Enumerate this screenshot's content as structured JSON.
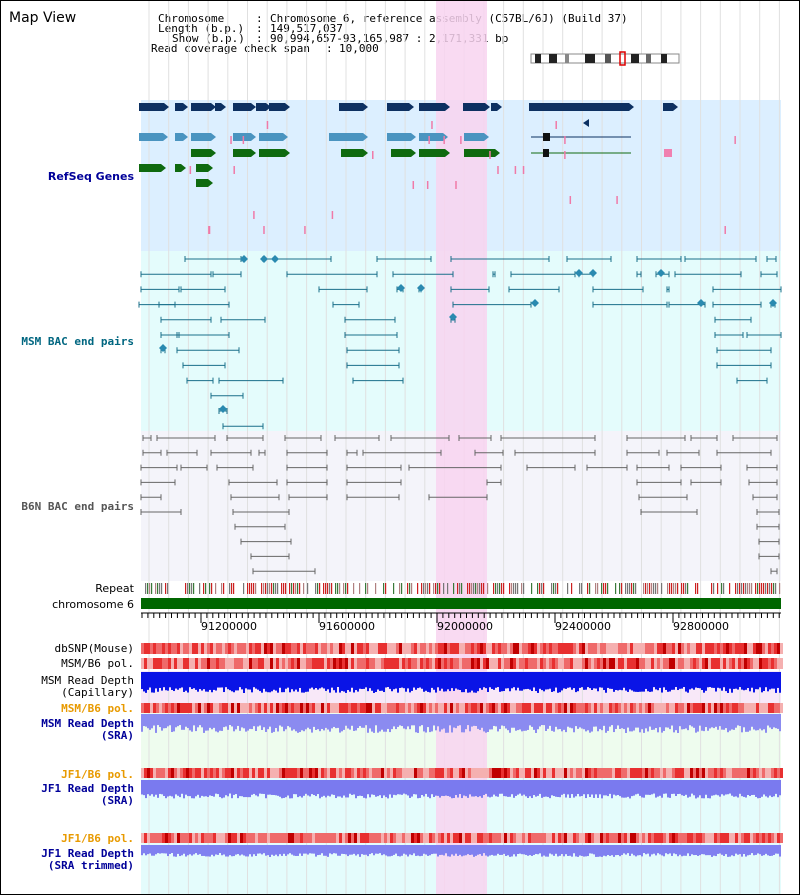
{
  "view_title": "Map View",
  "header": {
    "chromosome_label": "Chromosome",
    "chromosome_value": "Chromosome 6, reference assembly (C57BL/6J) (Build 37)",
    "length_label": "Length (b.p.)",
    "length_value": "149,517,037",
    "show_label": "Show (b.p.)",
    "show_value": "90,994,657-93,165,987 : 2,171,331 bp",
    "coverage_label": "Read coverage check span",
    "coverage_value": "10,000"
  },
  "tracks": {
    "refseq": "RefSeq Genes",
    "msm_bac": "MSM BAC end pairs",
    "b6n_bac": "B6N BAC end pairs",
    "repeat": "Repeat",
    "chromosome": "chromosome 6",
    "dbsnp": "dbSNP(Mouse)",
    "msm_b6_pol": "MSM/B6 pol.",
    "msm_depth_cap_1": "MSM Read Depth",
    "msm_depth_cap_2": "(Capillary)",
    "msm_b6_pol_2": "MSM/B6 pol.",
    "msm_depth_sra_1": "MSM Read Depth",
    "msm_depth_sra_2": "(SRA)",
    "jf1_b6_pol": "JF1/B6 pol.",
    "jf1_depth_sra_1": "JF1 Read Depth",
    "jf1_depth_sra_2": "(SRA)",
    "jf1_b6_pol_2": "JF1/B6 pol.",
    "jf1_depth_trim_1": "JF1 Read Depth",
    "jf1_depth_trim_2": "(SRA trimmed)"
  },
  "axis": {
    "tick_labels": [
      "91200000",
      "91600000",
      "92000000",
      "92400000",
      "92800000"
    ]
  },
  "colors": {
    "refseq_bg": "#dcefff",
    "msm_bg": "#e4fcfc",
    "b6n_bg": "#f4f4fa",
    "highlight": "#f8d4f0",
    "gene_dark": "#0d3061",
    "gene_mid": "#4a94c0",
    "gene_green": "#0f6a0f",
    "msm_line": "#1a6f8a",
    "b6n_line": "#666666",
    "chrom_bar": "#006600",
    "depth_blue": "#0a14e6",
    "depth_light": "#8b8bf0",
    "pol_red": "#e83a3a",
    "label_blue": "#000099",
    "label_teal": "#006680",
    "label_orange": "#e89a00"
  }
}
